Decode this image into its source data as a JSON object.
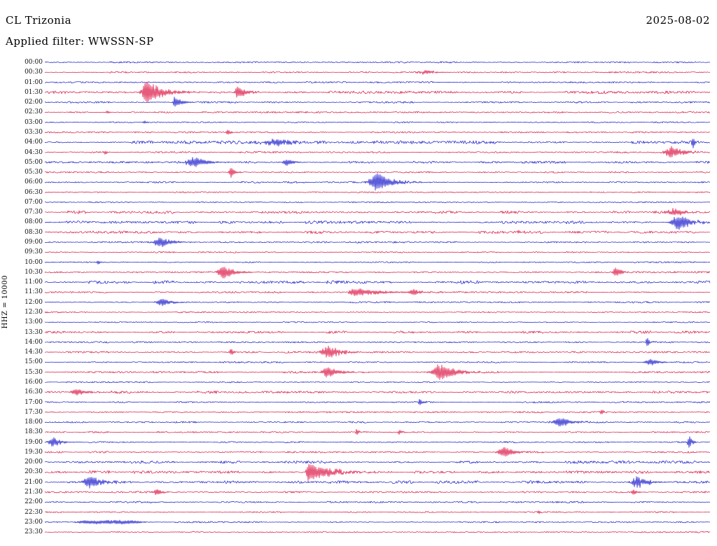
{
  "header": {
    "station": "CL Trizonia",
    "date": "2025-08-02",
    "filter_label": "Applied filter: WWSSN-SP"
  },
  "axis": {
    "scale_label": "HHZ = 10000"
  },
  "chart_data": {
    "type": "line",
    "subtype": "helicorder-seismogram-dayplot",
    "title": "CL Trizonia",
    "date": "2025-08-02",
    "filter": "WWSSN-SP",
    "channel_scale": "HHZ = 10000",
    "minutes_per_row": 30,
    "row_count": 48,
    "time_start": "00:00",
    "time_end": "23:30",
    "legend": "off",
    "grid": "off",
    "colors": {
      "blue": "#1818cc",
      "red": "#dc1444"
    },
    "rows": [
      {
        "label": "00:00",
        "color": "blue",
        "noise": 0.7,
        "events": []
      },
      {
        "label": "00:30",
        "color": "red",
        "noise": 0.7,
        "events": [
          {
            "x": 0.575,
            "amp": 3,
            "rise": 8,
            "decay": 12
          }
        ]
      },
      {
        "label": "01:00",
        "color": "blue",
        "noise": 0.7,
        "events": []
      },
      {
        "label": "01:30",
        "color": "red",
        "noise": 1.0,
        "events": [
          {
            "x": 0.154,
            "amp": 16,
            "rise": 5,
            "decay": 22
          },
          {
            "x": 0.291,
            "amp": 8,
            "rise": 4,
            "decay": 12
          }
        ]
      },
      {
        "label": "02:00",
        "color": "blue",
        "noise": 0.8,
        "events": [
          {
            "x": 0.196,
            "amp": 9,
            "rise": 2,
            "decay": 9
          }
        ]
      },
      {
        "label": "02:30",
        "color": "red",
        "noise": 0.7,
        "events": [
          {
            "x": 0.095,
            "amp": 3,
            "rise": 2,
            "decay": 4
          }
        ]
      },
      {
        "label": "03:00",
        "color": "blue",
        "noise": 0.6,
        "events": [
          {
            "x": 0.15,
            "amp": 3,
            "rise": 1.5,
            "decay": 3
          }
        ]
      },
      {
        "label": "03:30",
        "color": "red",
        "noise": 0.7,
        "events": [
          {
            "x": 0.275,
            "amp": 5,
            "rise": 1.5,
            "decay": 4
          }
        ]
      },
      {
        "label": "04:00",
        "color": "blue",
        "noise": 1.1,
        "events": [
          {
            "x": 0.348,
            "amp": 5,
            "rise": 14,
            "decay": 26
          },
          {
            "x": 0.975,
            "amp": 10,
            "rise": 1.5,
            "decay": 3
          }
        ]
      },
      {
        "label": "04:30",
        "color": "red",
        "noise": 0.8,
        "events": [
          {
            "x": 0.943,
            "amp": 8,
            "rise": 7,
            "decay": 16
          },
          {
            "x": 0.091,
            "amp": 3,
            "rise": 2,
            "decay": 4
          }
        ]
      },
      {
        "label": "05:00",
        "color": "blue",
        "noise": 0.9,
        "events": [
          {
            "x": 0.227,
            "amp": 7,
            "rise": 9,
            "decay": 16
          },
          {
            "x": 0.364,
            "amp": 5,
            "rise": 4,
            "decay": 9
          }
        ]
      },
      {
        "label": "05:30",
        "color": "red",
        "noise": 0.7,
        "events": [
          {
            "x": 0.28,
            "amp": 8,
            "rise": 2,
            "decay": 5
          }
        ]
      },
      {
        "label": "06:00",
        "color": "blue",
        "noise": 0.8,
        "events": [
          {
            "x": 0.501,
            "amp": 13,
            "rise": 8,
            "decay": 18
          }
        ]
      },
      {
        "label": "06:30",
        "color": "red",
        "noise": 0.6,
        "events": []
      },
      {
        "label": "07:00",
        "color": "blue",
        "noise": 0.6,
        "events": []
      },
      {
        "label": "07:30",
        "color": "red",
        "noise": 1.0,
        "events": [
          {
            "x": 0.948,
            "amp": 6,
            "rise": 6,
            "decay": 13
          }
        ]
      },
      {
        "label": "08:00",
        "color": "blue",
        "noise": 1.0,
        "events": [
          {
            "x": 0.954,
            "amp": 12,
            "rise": 7,
            "decay": 15
          }
        ]
      },
      {
        "label": "08:30",
        "color": "red",
        "noise": 0.9,
        "events": [
          {
            "x": 0.712,
            "amp": 3,
            "rise": 2,
            "decay": 5
          }
        ]
      },
      {
        "label": "09:00",
        "color": "blue",
        "noise": 0.8,
        "events": [
          {
            "x": 0.175,
            "amp": 7,
            "rise": 7,
            "decay": 15
          }
        ]
      },
      {
        "label": "09:30",
        "color": "red",
        "noise": 0.6,
        "events": []
      },
      {
        "label": "10:00",
        "color": "blue",
        "noise": 0.6,
        "events": [
          {
            "x": 0.08,
            "amp": 3,
            "rise": 1.5,
            "decay": 3
          }
        ]
      },
      {
        "label": "10:30",
        "color": "red",
        "noise": 0.8,
        "events": [
          {
            "x": 0.269,
            "amp": 9,
            "rise": 6,
            "decay": 15
          },
          {
            "x": 0.859,
            "amp": 7,
            "rise": 3,
            "decay": 8
          }
        ]
      },
      {
        "label": "11:00",
        "color": "blue",
        "noise": 1.1,
        "events": []
      },
      {
        "label": "11:30",
        "color": "red",
        "noise": 0.8,
        "events": [
          {
            "x": 0.464,
            "amp": 6,
            "rise": 4,
            "decay": 35
          },
          {
            "x": 0.554,
            "amp": 4,
            "rise": 4,
            "decay": 10
          }
        ]
      },
      {
        "label": "12:00",
        "color": "blue",
        "noise": 0.7,
        "events": [
          {
            "x": 0.177,
            "amp": 6,
            "rise": 5,
            "decay": 11
          }
        ]
      },
      {
        "label": "12:30",
        "color": "red",
        "noise": 0.6,
        "events": []
      },
      {
        "label": "13:00",
        "color": "blue",
        "noise": 0.5,
        "events": []
      },
      {
        "label": "13:30",
        "color": "red",
        "noise": 0.9,
        "events": []
      },
      {
        "label": "14:00",
        "color": "blue",
        "noise": 0.7,
        "events": [
          {
            "x": 0.906,
            "amp": 9,
            "rise": 1.5,
            "decay": 3
          }
        ]
      },
      {
        "label": "14:30",
        "color": "red",
        "noise": 0.8,
        "events": [
          {
            "x": 0.427,
            "amp": 9,
            "rise": 7,
            "decay": 16
          },
          {
            "x": 0.28,
            "amp": 6,
            "rise": 1.5,
            "decay": 4
          }
        ]
      },
      {
        "label": "15:00",
        "color": "blue",
        "noise": 0.7,
        "events": [
          {
            "x": 0.912,
            "amp": 5,
            "rise": 6,
            "decay": 11
          }
        ]
      },
      {
        "label": "15:30",
        "color": "red",
        "noise": 0.8,
        "events": [
          {
            "x": 0.427,
            "amp": 8,
            "rise": 7,
            "decay": 15
          },
          {
            "x": 0.596,
            "amp": 12,
            "rise": 8,
            "decay": 18
          }
        ]
      },
      {
        "label": "16:00",
        "color": "blue",
        "noise": 0.6,
        "events": []
      },
      {
        "label": "16:30",
        "color": "red",
        "noise": 0.9,
        "events": [
          {
            "x": 0.048,
            "amp": 5,
            "rise": 5,
            "decay": 11
          }
        ]
      },
      {
        "label": "17:00",
        "color": "blue",
        "noise": 0.7,
        "events": [
          {
            "x": 0.564,
            "amp": 5,
            "rise": 1.5,
            "decay": 4
          }
        ]
      },
      {
        "label": "17:30",
        "color": "red",
        "noise": 0.7,
        "events": [
          {
            "x": 0.838,
            "amp": 3,
            "rise": 2,
            "decay": 4
          }
        ]
      },
      {
        "label": "18:00",
        "color": "blue",
        "noise": 0.8,
        "events": [
          {
            "x": 0.775,
            "amp": 7,
            "rise": 7,
            "decay": 15
          }
        ]
      },
      {
        "label": "18:30",
        "color": "red",
        "noise": 0.7,
        "events": [
          {
            "x": 0.469,
            "amp": 4,
            "rise": 1.5,
            "decay": 4
          },
          {
            "x": 0.533,
            "amp": 4,
            "rise": 1.5,
            "decay": 4
          }
        ]
      },
      {
        "label": "19:00",
        "color": "blue",
        "noise": 0.7,
        "events": [
          {
            "x": 0.012,
            "amp": 7,
            "rise": 4,
            "decay": 10
          },
          {
            "x": 0.969,
            "amp": 13,
            "rise": 1.5,
            "decay": 3
          }
        ]
      },
      {
        "label": "19:30",
        "color": "red",
        "noise": 0.8,
        "events": [
          {
            "x": 0.691,
            "amp": 8,
            "rise": 6,
            "decay": 13
          }
        ]
      },
      {
        "label": "20:00",
        "color": "blue",
        "noise": 1.0,
        "events": []
      },
      {
        "label": "20:30",
        "color": "red",
        "noise": 1.0,
        "events": [
          {
            "x": 0.396,
            "amp": 14,
            "rise": 2,
            "decay": 28
          }
        ]
      },
      {
        "label": "21:00",
        "color": "blue",
        "noise": 1.0,
        "events": [
          {
            "x": 0.069,
            "amp": 9,
            "rise": 7,
            "decay": 16
          },
          {
            "x": 0.891,
            "amp": 8,
            "rise": 6,
            "decay": 13
          }
        ]
      },
      {
        "label": "21:30",
        "color": "red",
        "noise": 0.8,
        "events": [
          {
            "x": 0.169,
            "amp": 5,
            "rise": 3,
            "decay": 7
          },
          {
            "x": 0.885,
            "amp": 4,
            "rise": 2,
            "decay": 5
          }
        ]
      },
      {
        "label": "22:00",
        "color": "blue",
        "noise": 0.8,
        "events": []
      },
      {
        "label": "22:30",
        "color": "red",
        "noise": 0.6,
        "events": [
          {
            "x": 0.743,
            "amp": 3,
            "rise": 1.5,
            "decay": 3
          }
        ]
      },
      {
        "label": "23:00",
        "color": "blue",
        "noise": 0.7,
        "events": [
          {
            "x": 0.096,
            "amp": 2.6,
            "rise": 20,
            "decay": 20,
            "dense": true
          }
        ]
      },
      {
        "label": "23:30",
        "color": "red",
        "noise": 0.6,
        "events": []
      }
    ]
  }
}
